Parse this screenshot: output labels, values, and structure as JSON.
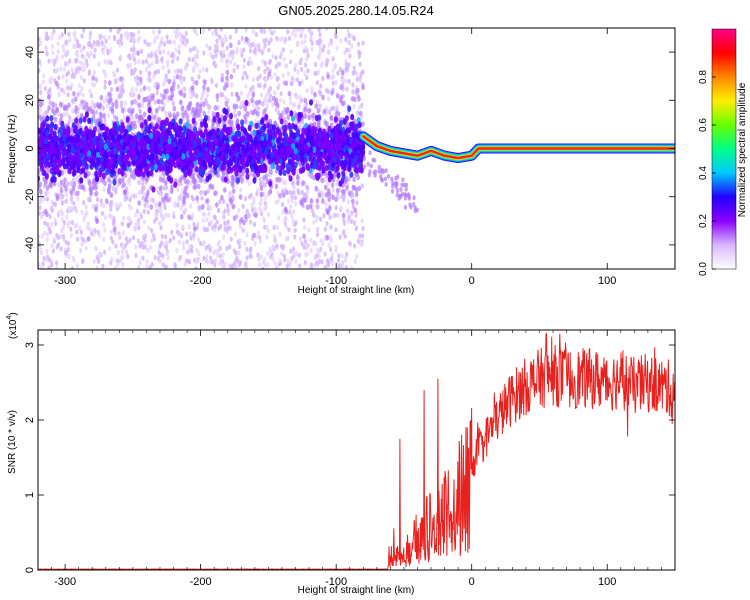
{
  "figure_title": "GN05.2025.280.14.05.R24",
  "chart_data": [
    {
      "type": "heatmap",
      "xlabel": "Height of straight line (km)",
      "ylabel": "Frequency (Hz)",
      "xlim": [
        -320,
        150
      ],
      "ylim": [
        -50,
        50
      ],
      "x_ticks": [
        -300,
        -200,
        -100,
        0,
        100
      ],
      "y_ticks": [
        -40,
        -20,
        0,
        20,
        40
      ],
      "colorbar": {
        "label": "Normalized spectral amplitude",
        "range": [
          0,
          1
        ],
        "ticks": [
          "0.0",
          "0.2",
          "0.4",
          "0.6",
          "0.8"
        ],
        "colors": [
          "#ffffff",
          "#d9b8ff",
          "#8a00ff",
          "#2200ff",
          "#00c8ff",
          "#00ff88",
          "#66ff00",
          "#ffee00",
          "#ff8800",
          "#ff0000",
          "#ff0088"
        ]
      },
      "noise_region_x": [
        -320,
        -80
      ],
      "noise_center_y": 0,
      "noise_band_halfwidth": 10,
      "trace": {
        "x": [
          -80,
          -70,
          -60,
          -50,
          -40,
          -30,
          -20,
          -10,
          0,
          5,
          10,
          50,
          100,
          150
        ],
        "y": [
          5,
          1,
          -1,
          -2,
          -3,
          -1,
          -3,
          -4,
          -3,
          0,
          0,
          0,
          0,
          0
        ]
      }
    },
    {
      "type": "line",
      "xlabel": "Height of straight line (km)",
      "ylabel": "SNR (10 * v/v)",
      "y_multiplier_label": "(x10",
      "y_multiplier_exp": "4",
      "xlim": [
        -320,
        150
      ],
      "ylim": [
        0,
        3.2
      ],
      "x_ticks": [
        -300,
        -200,
        -100,
        0,
        100
      ],
      "y_ticks": [
        0,
        1,
        2,
        3
      ],
      "color": "#e8211e",
      "envelope": {
        "x": [
          -320,
          -90,
          -62,
          -57,
          -53,
          -50,
          -45,
          -40,
          -30,
          -20,
          -10,
          0,
          10,
          20,
          30,
          40,
          50,
          60,
          70,
          80,
          90,
          100,
          110,
          120,
          130,
          140,
          150
        ],
        "y": [
          0.01,
          0.01,
          0.02,
          0.4,
          0.1,
          0.2,
          0.4,
          0.5,
          0.7,
          0.85,
          1.1,
          1.4,
          1.75,
          2.05,
          2.3,
          2.45,
          2.55,
          2.6,
          2.55,
          2.55,
          2.55,
          2.5,
          2.55,
          2.45,
          2.5,
          2.45,
          2.4
        ]
      },
      "spikes": [
        {
          "x": -53,
          "y": 1.75
        },
        {
          "x": -25,
          "y": 2.55
        },
        {
          "x": -35,
          "y": 2.4
        },
        {
          "x": 55,
          "y": 3.15
        },
        {
          "x": 65,
          "y": 3.15
        },
        {
          "x": 115,
          "y": 1.78
        },
        {
          "x": 148,
          "y": 1.95
        }
      ]
    }
  ]
}
